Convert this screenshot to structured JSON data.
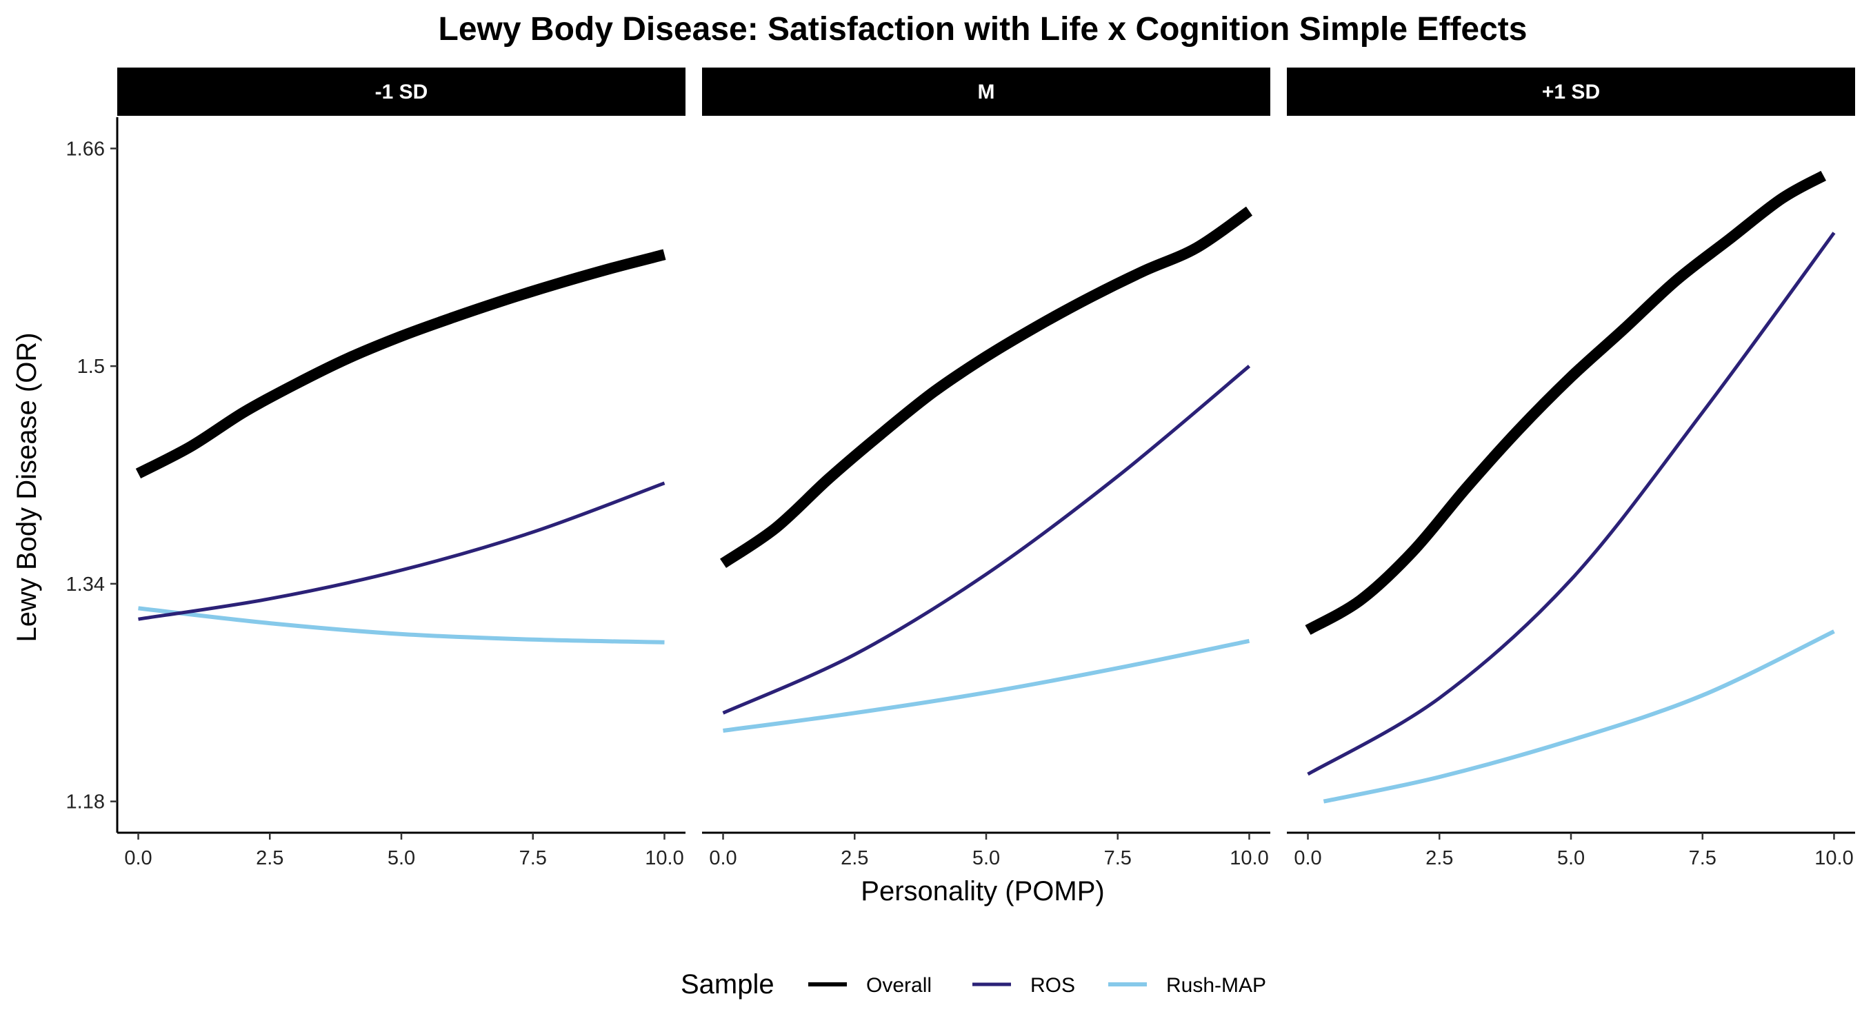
{
  "chart_data": {
    "type": "line",
    "title": "Lewy Body Disease: Satisfaction with Life x Cognition Simple Effects",
    "xlabel": "Personality (POMP)",
    "ylabel": "Lewy Body Disease (OR)",
    "xlim": [
      -0.4,
      10.4
    ],
    "ylim": [
      1.157,
      1.683
    ],
    "x_ticks": [
      0.0,
      2.5,
      5.0,
      7.5,
      10.0
    ],
    "x_tick_labels": [
      "0.0",
      "2.5",
      "5.0",
      "7.5",
      "10.0"
    ],
    "y_ticks": [
      1.18,
      1.34,
      1.5,
      1.66
    ],
    "y_tick_labels": [
      "1.18",
      "1.34",
      "1.5",
      "1.66"
    ],
    "legend": {
      "title": "Sample",
      "position": "bottom",
      "entries": [
        "Overall",
        "ROS",
        "Rush-MAP"
      ]
    },
    "colors": {
      "Overall": "#000000",
      "ROS": "#2b2177",
      "Rush-MAP": "#86c9ea"
    },
    "panels": [
      {
        "label": "-1 SD",
        "series": [
          {
            "name": "Overall",
            "x": [
              0,
              1,
              2,
              3,
              4,
              5,
              6,
              7,
              8,
              9,
              10
            ],
            "y": [
              1.421,
              1.441,
              1.466,
              1.487,
              1.506,
              1.522,
              1.536,
              1.549,
              1.561,
              1.572,
              1.582
            ]
          },
          {
            "name": "ROS",
            "x": [
              0,
              2.5,
              5,
              7.5,
              10
            ],
            "y": [
              1.314,
              1.329,
              1.35,
              1.378,
              1.414
            ]
          },
          {
            "name": "Rush-MAP",
            "x": [
              0,
              2.5,
              5,
              7.5,
              10
            ],
            "y": [
              1.322,
              1.311,
              1.303,
              1.299,
              1.297
            ]
          }
        ]
      },
      {
        "label": "M",
        "series": [
          {
            "name": "Overall",
            "x": [
              0,
              1,
              2,
              3,
              4,
              5,
              6,
              7,
              8,
              9,
              10
            ],
            "y": [
              1.355,
              1.381,
              1.417,
              1.45,
              1.481,
              1.507,
              1.53,
              1.551,
              1.57,
              1.587,
              1.614
            ]
          },
          {
            "name": "ROS",
            "x": [
              0,
              2.5,
              5,
              7.5,
              10
            ],
            "y": [
              1.245,
              1.288,
              1.347,
              1.419,
              1.5
            ]
          },
          {
            "name": "Rush-MAP",
            "x": [
              0,
              2.5,
              5,
              7.5,
              10
            ],
            "y": [
              1.232,
              1.245,
              1.26,
              1.278,
              1.298
            ]
          }
        ]
      },
      {
        "label": "+1 SD",
        "series": [
          {
            "name": "Overall",
            "x": [
              0,
              1,
              2,
              3,
              4,
              5,
              6,
              7,
              8,
              9,
              9.8
            ],
            "y": [
              1.306,
              1.328,
              1.364,
              1.41,
              1.453,
              1.492,
              1.527,
              1.563,
              1.593,
              1.623,
              1.64
            ]
          },
          {
            "name": "ROS",
            "x": [
              0,
              2.5,
              5,
              7.5,
              10
            ],
            "y": [
              1.2,
              1.256,
              1.343,
              1.466,
              1.598
            ]
          },
          {
            "name": "Rush-MAP",
            "x": [
              0.3,
              2.5,
              5,
              7.5,
              10
            ],
            "y": [
              1.18,
              1.198,
              1.225,
              1.258,
              1.305
            ]
          }
        ]
      }
    ]
  }
}
